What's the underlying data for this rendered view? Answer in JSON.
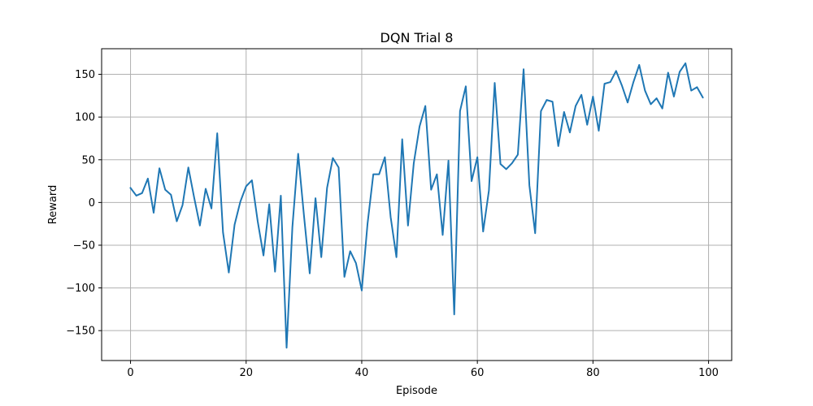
{
  "chart_data": {
    "type": "line",
    "title": "DQN Trial 8",
    "xlabel": "Episode",
    "ylabel": "Reward",
    "xlim": [
      -5,
      104
    ],
    "ylim": [
      -185,
      180
    ],
    "xticks": [
      0,
      20,
      40,
      60,
      80,
      100
    ],
    "yticks": [
      -150,
      -100,
      -50,
      0,
      50,
      100,
      150
    ],
    "xtick_labels": [
      "0",
      "20",
      "40",
      "60",
      "80",
      "100"
    ],
    "ytick_labels": [
      "−150",
      "−100",
      "−50",
      "0",
      "50",
      "100",
      "150"
    ],
    "grid": true,
    "legend": "none",
    "color": "#1f77b4",
    "series": [
      {
        "x": [
          0,
          1,
          2,
          3,
          4,
          5,
          6,
          7,
          8,
          9,
          10,
          11,
          12,
          13,
          14,
          15,
          16,
          17,
          18,
          19,
          20,
          21,
          22,
          23,
          24,
          25,
          26,
          27,
          28,
          29,
          30,
          31,
          32,
          33,
          34,
          35,
          36,
          37,
          38,
          39,
          40,
          41,
          42,
          43,
          44,
          45,
          46,
          47,
          48,
          49,
          50,
          51,
          52,
          53,
          54,
          55,
          56,
          57,
          58,
          59,
          60,
          61,
          62,
          63,
          64,
          65,
          66,
          67,
          68,
          69,
          70,
          71,
          72,
          73,
          74,
          75,
          76,
          77,
          78,
          79,
          80,
          81,
          82,
          83,
          84,
          85,
          86,
          87,
          88,
          89,
          90,
          91,
          92,
          93,
          94,
          95,
          96,
          97,
          98,
          99
        ],
        "values": [
          17,
          8,
          11,
          28,
          -12,
          40,
          15,
          9,
          -22,
          -3,
          41,
          6,
          -27,
          16,
          -7,
          81,
          -35,
          -82,
          -26,
          1,
          19,
          26,
          -22,
          -62,
          -2,
          -81,
          8,
          -170,
          -29,
          57,
          -15,
          -83,
          5,
          -64,
          17,
          52,
          41,
          -87,
          -57,
          -71,
          -103,
          -25,
          33,
          33,
          53,
          -17,
          -64,
          74,
          -27,
          46,
          89,
          113,
          15,
          33,
          -38,
          49,
          -131,
          107,
          136,
          25,
          53,
          -34,
          14,
          140,
          45,
          39,
          46,
          56,
          156,
          20,
          -36,
          107,
          120,
          118,
          66,
          106,
          82,
          113,
          126,
          91,
          124,
          84,
          139,
          141,
          154,
          137,
          117,
          141,
          161,
          131,
          115,
          122,
          110,
          152,
          124,
          153,
          163,
          131,
          135,
          123
        ]
      }
    ]
  }
}
